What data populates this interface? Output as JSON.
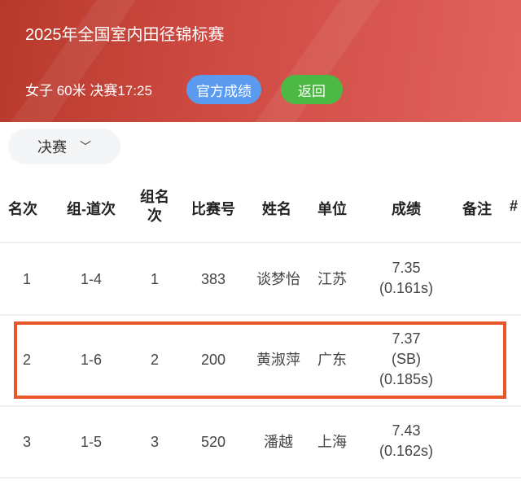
{
  "header": {
    "title": "2025年全国室内田径锦标赛",
    "event": "女子 60米 决赛17:25",
    "official_label": "官方成绩",
    "back_label": "返回"
  },
  "round_select": {
    "value": "决赛"
  },
  "colors": {
    "header": "#c8463c",
    "official": "#5a9bf0",
    "back": "#4cb944",
    "highlight": "#e8562a"
  },
  "table": {
    "headers": [
      "名次",
      "组-道次",
      "组名次",
      "比赛号",
      "姓名",
      "单位",
      "成绩",
      "备注",
      "#"
    ],
    "rows": [
      {
        "rank": "1",
        "lane": "1-4",
        "group_rank": "1",
        "bib": "383",
        "name": "谈梦怡",
        "unit": "江苏",
        "result": [
          "7.35",
          "(0.161s)"
        ]
      },
      {
        "rank": "2",
        "lane": "1-6",
        "group_rank": "2",
        "bib": "200",
        "name": "黄淑萍",
        "unit": "广东",
        "result": [
          "7.37",
          "(SB)",
          "(0.185s)"
        ],
        "highlighted": true
      },
      {
        "rank": "3",
        "lane": "1-5",
        "group_rank": "3",
        "bib": "520",
        "name": "潘越",
        "unit": "上海",
        "result": [
          "7.43",
          "(0.162s)"
        ]
      }
    ]
  }
}
